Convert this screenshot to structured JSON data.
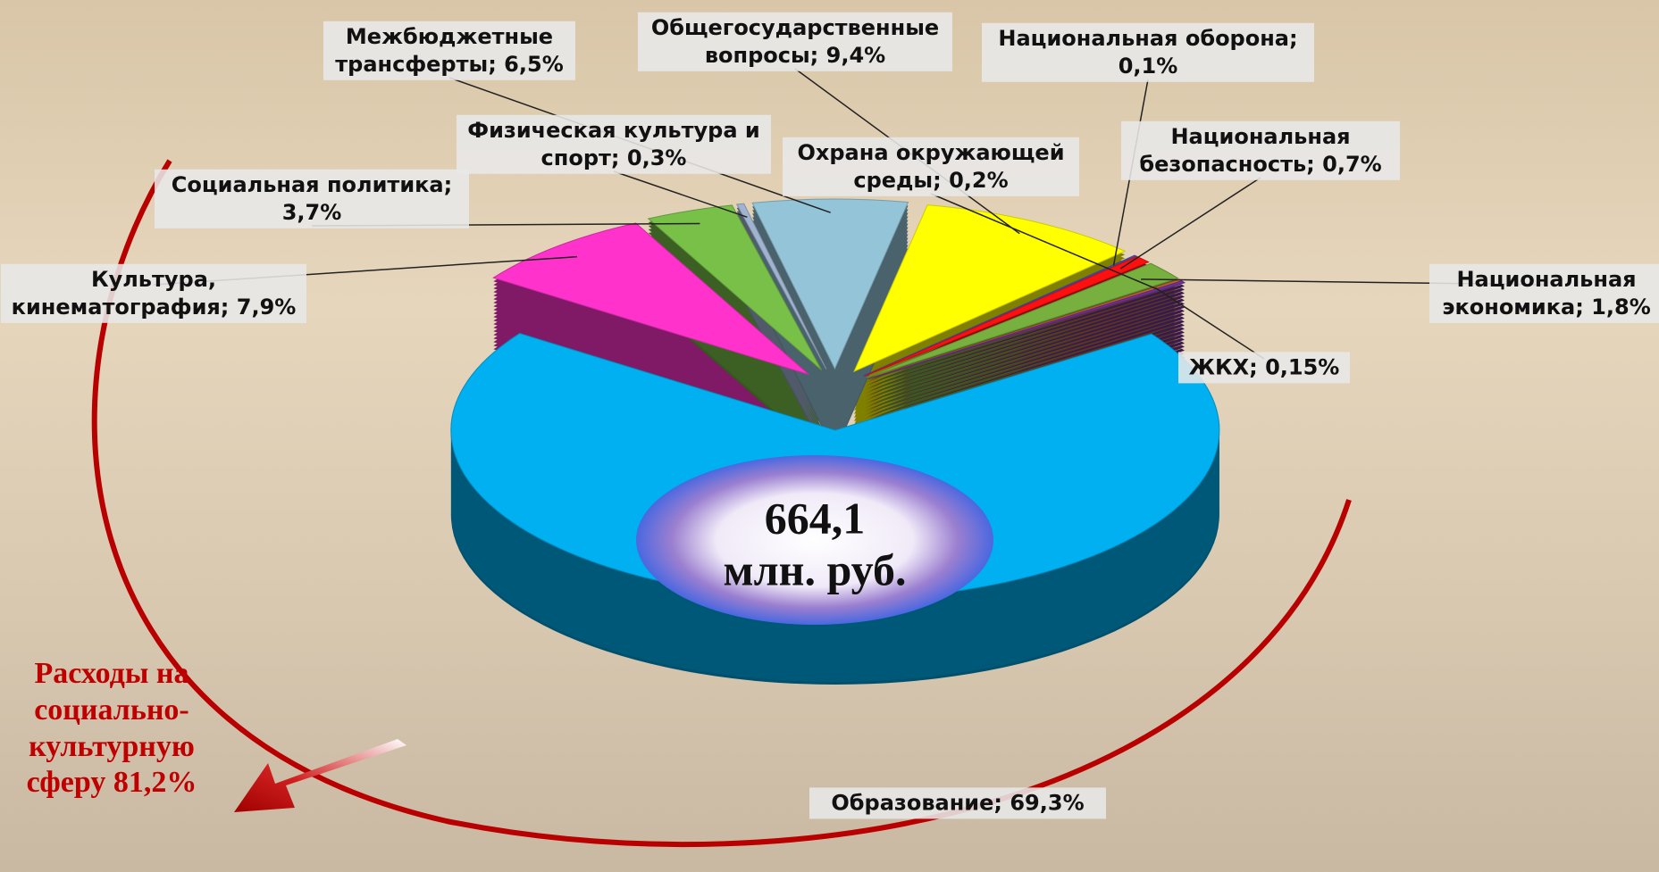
{
  "chart_data": {
    "type": "pie",
    "labels": [
      "Общегосударственные вопросы; 9,4%",
      "Национальная оборона; 0,1%",
      "Национальная безопасность; 0,7%",
      "Национальная экономика; 1,8%",
      "ЖКХ; 0,15%",
      "Охрана окружающей среды; 0,2%",
      "Образование; 69,3%",
      "Культура, кинематография; 7,9%",
      "Социальная политика; 3,7%",
      "Физическая культура и спорт; 0,3%",
      "Межбюджетные трансферты; 6,5%"
    ],
    "values": [
      9.4,
      0.1,
      0.7,
      1.8,
      0.15,
      0.2,
      69.3,
      7.9,
      3.7,
      0.3,
      6.5
    ],
    "colors": [
      "#ffff00",
      "#5050b0",
      "#ff1010",
      "#78b040",
      "#c8642a",
      "#7030a0",
      "#00b0f0",
      "#ff33cc",
      "#78c048",
      "#a0b4d0",
      "#93c4d8"
    ],
    "center_value": "664,1",
    "center_unit": "млн. руб.",
    "annotation": "Расходы на социально-культурную сферу 81,2%"
  }
}
